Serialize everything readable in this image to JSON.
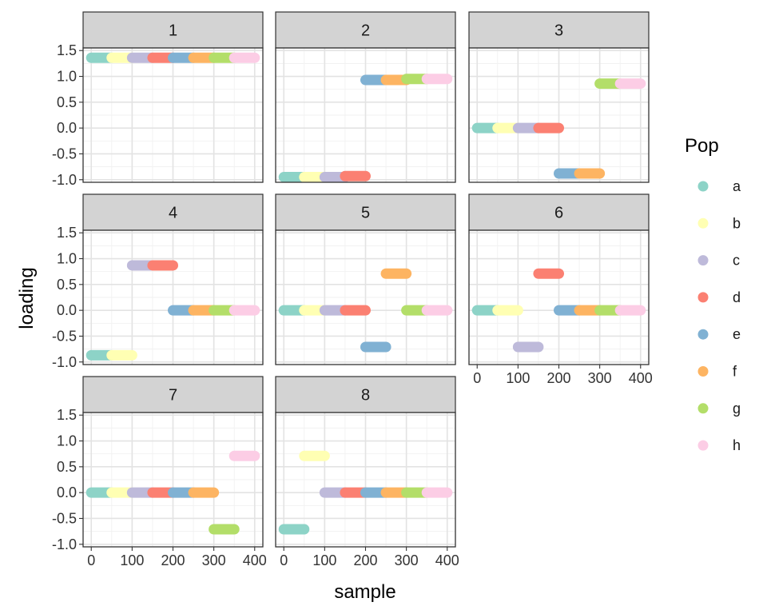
{
  "chart_data": {
    "type": "faceted-segment",
    "x_label": "sample",
    "y_label": "loading",
    "x_ticks": [
      0,
      100,
      200,
      300,
      400
    ],
    "x_tick_labels": [
      "0",
      "100",
      "200",
      "300",
      "400"
    ],
    "y_ticks": [
      -1.0,
      -0.5,
      0.0,
      0.5,
      1.0,
      1.5
    ],
    "y_tick_labels": [
      "-1.0",
      "-0.5",
      "0.0",
      "0.5",
      "1.0",
      "1.5"
    ],
    "xlim": [
      -20,
      420
    ],
    "ylim": [
      -1.05,
      1.55
    ],
    "segment_width": 50,
    "legend": {
      "title": "Pop",
      "items": [
        {
          "label": "a",
          "color": "#8DD3C7"
        },
        {
          "label": "b",
          "color": "#FFFFB3"
        },
        {
          "label": "c",
          "color": "#BEBADA"
        },
        {
          "label": "d",
          "color": "#FB8072"
        },
        {
          "label": "e",
          "color": "#80B1D3"
        },
        {
          "label": "f",
          "color": "#FDB462"
        },
        {
          "label": "g",
          "color": "#B3DE69"
        },
        {
          "label": "h",
          "color": "#FCCDE5"
        }
      ]
    },
    "panels": [
      {
        "label": "1",
        "values": [
          1.36,
          1.36,
          1.36,
          1.36,
          1.36,
          1.36,
          1.36,
          1.36
        ]
      },
      {
        "label": "2",
        "values": [
          -0.95,
          -0.95,
          -0.95,
          -0.93,
          0.93,
          0.93,
          0.95,
          0.95
        ]
      },
      {
        "label": "3",
        "values": [
          0.0,
          0.0,
          0.0,
          0.0,
          -0.88,
          -0.88,
          0.86,
          0.86
        ]
      },
      {
        "label": "4",
        "values": [
          -0.87,
          -0.87,
          0.87,
          0.87,
          0.0,
          0.0,
          0.0,
          0.0
        ]
      },
      {
        "label": "5",
        "values": [
          0.0,
          0.0,
          0.0,
          0.0,
          -0.71,
          0.71,
          0.0,
          0.0
        ]
      },
      {
        "label": "6",
        "values": [
          0.0,
          0.0,
          -0.71,
          0.71,
          0.0,
          0.0,
          0.0,
          0.0
        ]
      },
      {
        "label": "7",
        "values": [
          0.0,
          0.0,
          0.0,
          0.0,
          0.0,
          0.0,
          -0.71,
          0.71
        ]
      },
      {
        "label": "8",
        "values": [
          -0.71,
          0.71,
          0.0,
          0.0,
          0.0,
          0.0,
          0.0,
          0.0
        ]
      }
    ]
  }
}
